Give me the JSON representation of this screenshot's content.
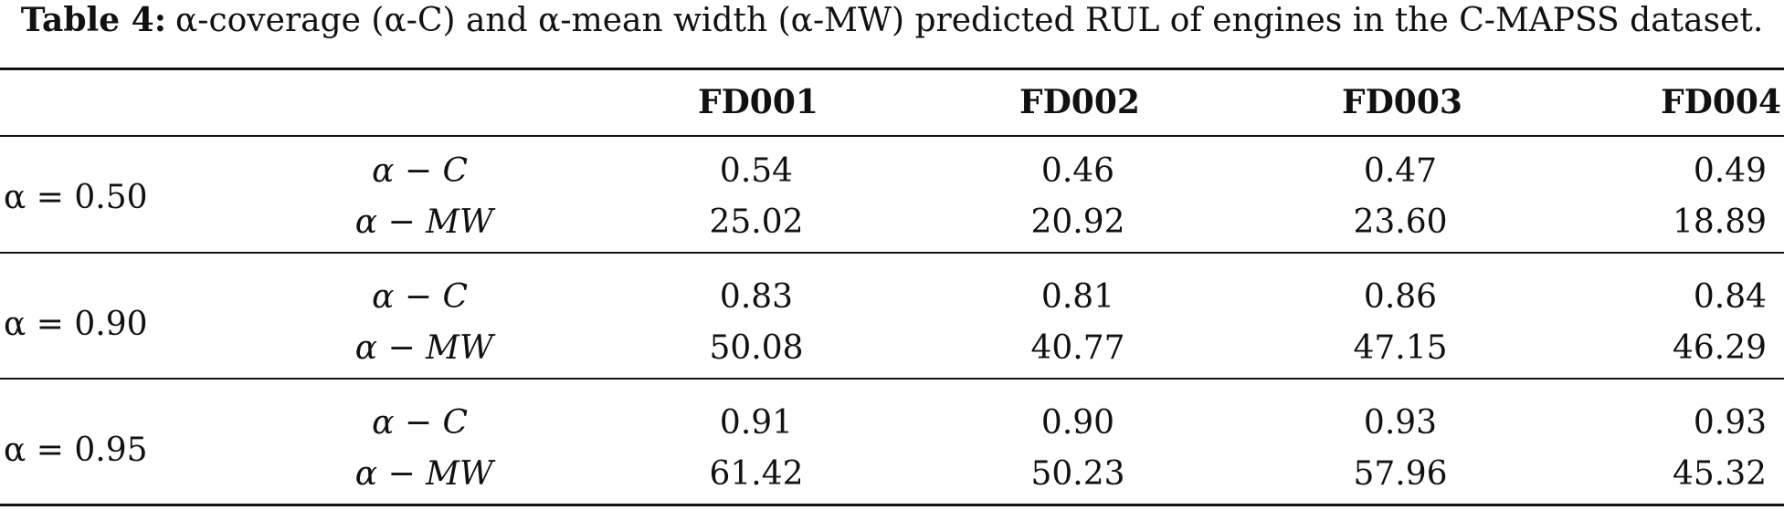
{
  "caption": {
    "label": "Table 4:",
    "text": "α-coverage (α-C) and α-mean width (α-MW) predicted RUL of engines in the C-MAPSS dataset."
  },
  "table": {
    "columns": [
      "FD001",
      "FD002",
      "FD003",
      "FD004"
    ],
    "groups": [
      {
        "alpha": "α = 0.50",
        "rows": [
          {
            "metric": "α − C",
            "values": [
              "0.54",
              "0.46",
              "0.47",
              "0.49"
            ]
          },
          {
            "metric": "α − MW",
            "values": [
              "25.02",
              "20.92",
              "23.60",
              "18.89"
            ]
          }
        ]
      },
      {
        "alpha": "α = 0.90",
        "rows": [
          {
            "metric": "α − C",
            "values": [
              "0.83",
              "0.81",
              "0.86",
              "0.84"
            ]
          },
          {
            "metric": "α − MW",
            "values": [
              "50.08",
              "40.77",
              "47.15",
              "46.29"
            ]
          }
        ]
      },
      {
        "alpha": "α = 0.95",
        "rows": [
          {
            "metric": "α − C",
            "values": [
              "0.91",
              "0.90",
              "0.93",
              "0.93"
            ]
          },
          {
            "metric": "α − MW",
            "values": [
              "61.42",
              "50.23",
              "57.96",
              "45.32"
            ]
          }
        ]
      }
    ]
  }
}
